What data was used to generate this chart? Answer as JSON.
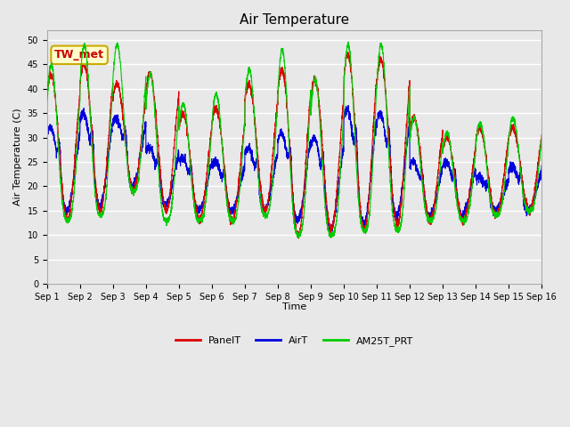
{
  "title": "Air Temperature",
  "ylabel": "Air Temperature (C)",
  "xlabel": "Time",
  "annotation_text": "TW_met",
  "annotation_bg": "#ffffcc",
  "annotation_border": "#ccaa00",
  "annotation_fg": "#cc0000",
  "ylim": [
    0,
    52
  ],
  "yticks": [
    0,
    5,
    10,
    15,
    20,
    25,
    30,
    35,
    40,
    45,
    50
  ],
  "bg_color": "#e8e8e8",
  "grid_color": "#ffffff",
  "legend_labels": [
    "PanelT",
    "AirT",
    "AM25T_PRT"
  ],
  "line_colors": [
    "#dd0000",
    "#0000dd",
    "#00cc00"
  ],
  "n_days": 15,
  "figsize": [
    6.4,
    4.8
  ],
  "dpi": 100
}
